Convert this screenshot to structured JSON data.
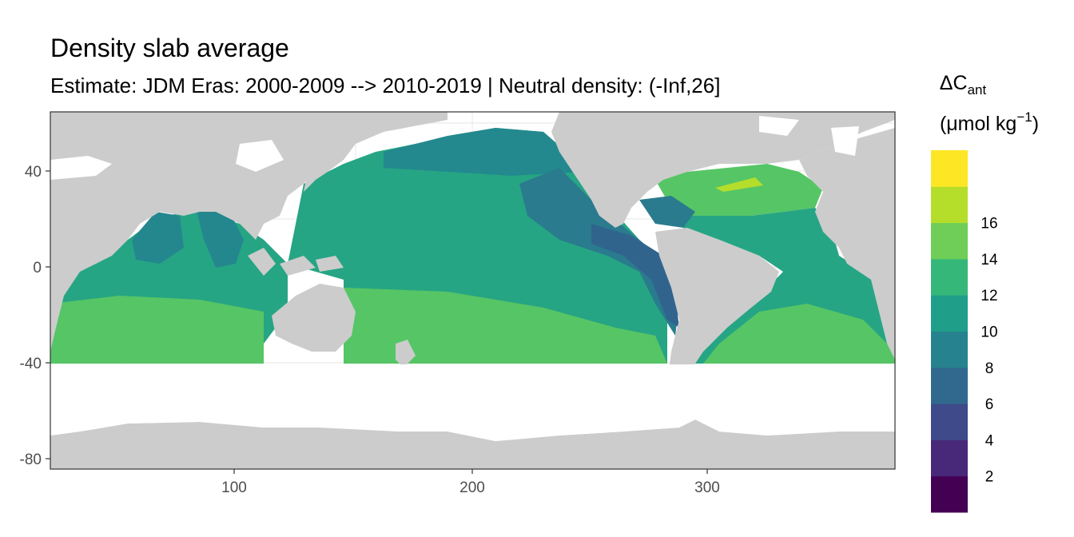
{
  "title": "Density slab average",
  "subtitle": "Estimate: JDM Eras: 2000-2009 --> 2010-2019 | Neutral density: (-Inf,26]",
  "legend": {
    "title_symbol": "ΔC",
    "title_subscript": "ant",
    "unit_prefix": "(μmol kg",
    "unit_superscript": "−1",
    "unit_suffix": ")",
    "breaks": [
      "2",
      "4",
      "6",
      "8",
      "10",
      "12",
      "14",
      "16"
    ],
    "colors": [
      "#440154",
      "#482878",
      "#3e4a89",
      "#31688e",
      "#26828e",
      "#1f9e89",
      "#35b779",
      "#6ece58",
      "#b5de2b",
      "#fde725"
    ]
  },
  "colors": {
    "land": "#cccccc",
    "ocean_nodata": "#ffffff",
    "grid": "#ebebeb",
    "panel_border": "#333333"
  },
  "chart_data": {
    "type": "heatmap",
    "xlim": [
      20,
      380
    ],
    "ylim": [
      -85,
      65
    ],
    "x_ticks": [
      "100",
      "200",
      "300"
    ],
    "y_ticks": [
      "40",
      "0",
      "-40",
      "-80"
    ],
    "x_tick_values": [
      100,
      200,
      300
    ],
    "y_tick_values": [
      40,
      0,
      -40,
      -80
    ],
    "grid": true,
    "legend_position": "right"
  }
}
